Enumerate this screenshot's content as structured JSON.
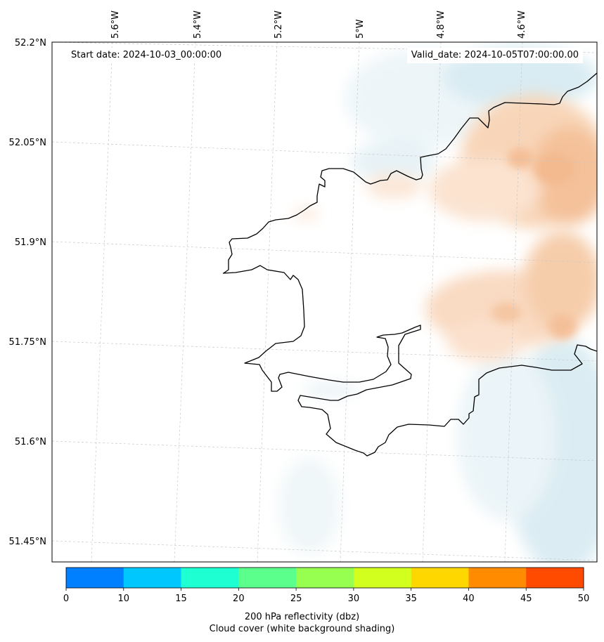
{
  "map": {
    "start_date": "Start date: 2024-10-03_00:00:00",
    "valid_date": "Valid_date: 2024-10-05T07:00:00.00",
    "lon_labels": [
      "5.6°W",
      "5.4°W",
      "5.2°W",
      "5°W",
      "4.8°W",
      "4.6°W"
    ],
    "lat_labels": [
      "52.2°N",
      "52.05°N",
      "51.9°N",
      "51.75°N",
      "51.6°N",
      "51.45°N"
    ]
  },
  "colorbar": {
    "ticks": [
      "0",
      "10",
      "15",
      "20",
      "25",
      "30",
      "35",
      "40",
      "45",
      "50"
    ],
    "colors": [
      "#0080ff",
      "#00c8ff",
      "#1effd2",
      "#5aff8c",
      "#96ff50",
      "#d2ff1e",
      "#ffd700",
      "#ff8c00",
      "#ff4b00"
    ],
    "label_line1": "200 hPa reflectivity (dbz)",
    "label_line2": "Cloud cover (white background shading)"
  },
  "colors": {
    "cloud_blue": "#d6ebf2",
    "cloud_orange": "#f7c9a6"
  }
}
